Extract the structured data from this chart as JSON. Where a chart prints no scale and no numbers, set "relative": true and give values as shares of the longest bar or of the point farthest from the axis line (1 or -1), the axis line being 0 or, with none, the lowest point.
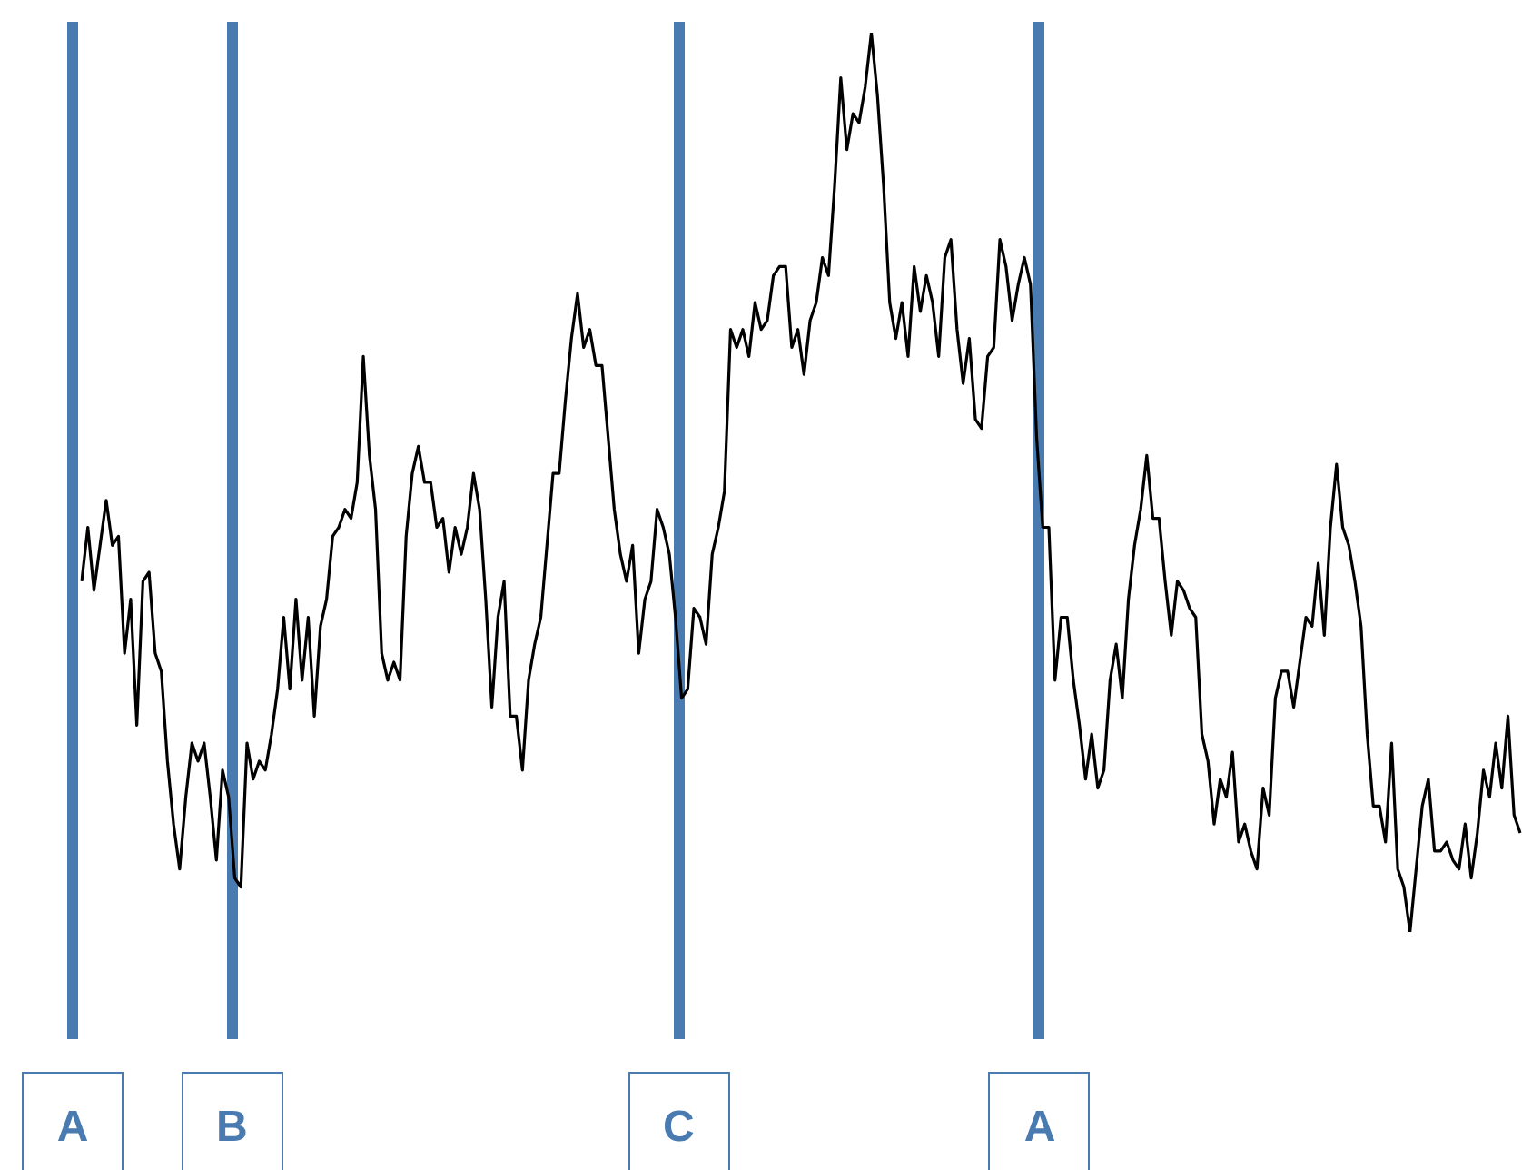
{
  "chart_data": {
    "type": "line",
    "relative": true,
    "annotations": [
      "A",
      "B",
      "C",
      "A"
    ],
    "marker": "none",
    "line_style": "solid",
    "categories": [
      null,
      null,
      null,
      null,
      null,
      null,
      null,
      null,
      null,
      null,
      null,
      null,
      null,
      null,
      null,
      null,
      null,
      null,
      null,
      null,
      null,
      null,
      null,
      null,
      null,
      null,
      null,
      null,
      null,
      null,
      null,
      null,
      null,
      null,
      null,
      null,
      null,
      null,
      null,
      null,
      null,
      null,
      null,
      null,
      null,
      null,
      null,
      null,
      null,
      null,
      null,
      null,
      null,
      null,
      null,
      null,
      null,
      null,
      null,
      null,
      null,
      null,
      null,
      null,
      null,
      null,
      null,
      null,
      null,
      null,
      null,
      null,
      null,
      null,
      null,
      null,
      null,
      null,
      null,
      null,
      null,
      null,
      null,
      null,
      null,
      null,
      null,
      null,
      null,
      null,
      null,
      null,
      null,
      null,
      null,
      null,
      null,
      null,
      null,
      null,
      null,
      null,
      null,
      null,
      null,
      null,
      null,
      null,
      null,
      null,
      null,
      null,
      null,
      null,
      null,
      null,
      null,
      null,
      null,
      null,
      null,
      null,
      null,
      null,
      null,
      null,
      null,
      null,
      null,
      null,
      null,
      null,
      null,
      null,
      null,
      null,
      null,
      null,
      null,
      null,
      null,
      null,
      null,
      null,
      null,
      null,
      null,
      null,
      null,
      null,
      null,
      null,
      null,
      null,
      null,
      null,
      null,
      null,
      null,
      null,
      null,
      null,
      null,
      null,
      null,
      null,
      null,
      null,
      null,
      null,
      null,
      null,
      null,
      null,
      null,
      null,
      null,
      null,
      null,
      null,
      null,
      null,
      null,
      null,
      null,
      null,
      null,
      null,
      null,
      null,
      null,
      null,
      null,
      null,
      null,
      null,
      null,
      null,
      null,
      null,
      null,
      null,
      null,
      null,
      null,
      null,
      null,
      null,
      null,
      null,
      null,
      null,
      null,
      null,
      null,
      null,
      null,
      null,
      null,
      null,
      null,
      null,
      null,
      null,
      null,
      null,
      null,
      null,
      null,
      null,
      null,
      null,
      null,
      null,
      null,
      null
    ],
    "series": [
      {
        "color": "#000000",
        "values": [
          0.39,
          0.45,
          0.38,
          0.43,
          0.48,
          0.43,
          0.44,
          0.31,
          0.37,
          0.23,
          0.39,
          0.4,
          0.31,
          0.29,
          0.19,
          0.12,
          0.07,
          0.15,
          0.21,
          0.19,
          0.21,
          0.15,
          0.08,
          0.18,
          0.15,
          0.06,
          0.05,
          0.21,
          0.17,
          0.19,
          0.18,
          0.22,
          0.27,
          0.35,
          0.27,
          0.37,
          0.28,
          0.35,
          0.24,
          0.34,
          0.37,
          0.44,
          0.45,
          0.47,
          0.46,
          0.5,
          0.64,
          0.53,
          0.47,
          0.31,
          0.28,
          0.3,
          0.28,
          0.44,
          0.51,
          0.54,
          0.5,
          0.5,
          0.45,
          0.46,
          0.4,
          0.45,
          0.42,
          0.45,
          0.51,
          0.47,
          0.37,
          0.25,
          0.35,
          0.39,
          0.24,
          0.24,
          0.18,
          0.28,
          0.32,
          0.35,
          0.43,
          0.51,
          0.51,
          0.59,
          0.66,
          0.71,
          0.65,
          0.67,
          0.63,
          0.63,
          0.55,
          0.47,
          0.42,
          0.39,
          0.43,
          0.31,
          0.37,
          0.39,
          0.47,
          0.45,
          0.42,
          0.35,
          0.26,
          0.27,
          0.36,
          0.35,
          0.32,
          0.42,
          0.45,
          0.49,
          0.67,
          0.65,
          0.67,
          0.64,
          0.7,
          0.67,
          0.68,
          0.73,
          0.74,
          0.74,
          0.65,
          0.67,
          0.62,
          0.68,
          0.7,
          0.75,
          0.73,
          0.83,
          0.95,
          0.87,
          0.91,
          0.9,
          0.94,
          1,
          0.93,
          0.83,
          0.7,
          0.66,
          0.7,
          0.64,
          0.74,
          0.69,
          0.73,
          0.7,
          0.64,
          0.75,
          0.77,
          0.67,
          0.61,
          0.66,
          0.57,
          0.56,
          0.64,
          0.65,
          0.77,
          0.74,
          0.68,
          0.72,
          0.75,
          0.72,
          0.55,
          0.45,
          0.45,
          0.28,
          0.35,
          0.35,
          0.28,
          0.23,
          0.17,
          0.22,
          0.16,
          0.18,
          0.28,
          0.32,
          0.26,
          0.37,
          0.43,
          0.47,
          0.53,
          0.46,
          0.46,
          0.39,
          0.33,
          0.39,
          0.38,
          0.36,
          0.35,
          0.22,
          0.19,
          0.12,
          0.17,
          0.15,
          0.2,
          0.1,
          0.12,
          0.09,
          0.07,
          0.16,
          0.13,
          0.26,
          0.29,
          0.29,
          0.25,
          0.3,
          0.35,
          0.34,
          0.41,
          0.33,
          0.45,
          0.52,
          0.45,
          0.43,
          0.39,
          0.34,
          0.22,
          0.14,
          0.14,
          0.1,
          0.21,
          0.07,
          0.05,
          0,
          0.07,
          0.14,
          0.17,
          0.09,
          0.09,
          0.1,
          0.08,
          0.07,
          0.12,
          0.06,
          0.11,
          0.18,
          0.15,
          0.21,
          0.16,
          0.24,
          0.13,
          0.11
        ]
      }
    ]
  }
}
